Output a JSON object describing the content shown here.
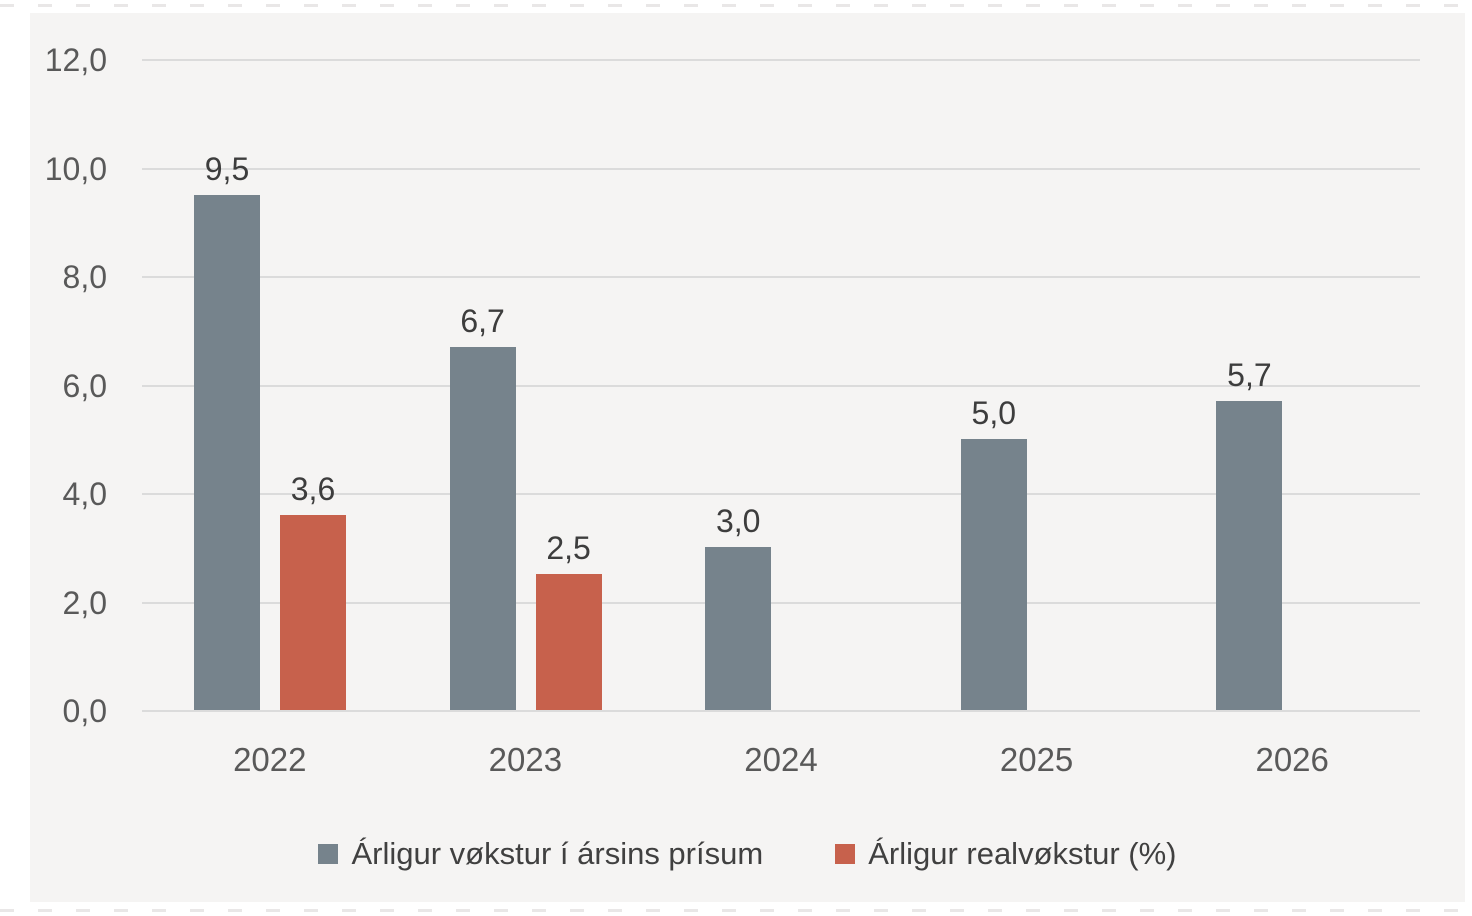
{
  "chart_data": {
    "type": "bar",
    "title": "",
    "xlabel": "",
    "ylabel": "",
    "categories": [
      "2022",
      "2023",
      "2024",
      "2025",
      "2026"
    ],
    "series": [
      {
        "name": "Árligur vøkstur í ársins prísum",
        "color": "#76838c",
        "values": [
          9.5,
          6.7,
          3.0,
          5.0,
          5.7
        ],
        "value_labels": [
          "9,5",
          "6,7",
          "3,0",
          "5,0",
          "5,7"
        ]
      },
      {
        "name": "Árligur realvøkstur (%)",
        "color": "#c7614c",
        "values": [
          3.6,
          2.5,
          null,
          null,
          null
        ],
        "value_labels": [
          "3,6",
          "2,5",
          "",
          "",
          ""
        ]
      }
    ],
    "ylim": [
      0,
      12
    ],
    "ytick_step": 2,
    "ytick_labels": [
      "0,0",
      "2,0",
      "4,0",
      "6,0",
      "8,0",
      "10,0",
      "12,0"
    ],
    "grid": "horizontal",
    "legend_position": "bottom",
    "decimal_separator": ","
  },
  "colors": {
    "page_background": "#ffffff",
    "panel_background": "#f5f4f3",
    "gridline": "#dbdbdb",
    "axis_text": "#595959",
    "data_label_text": "#3d3d3d",
    "legend_text": "#404040",
    "series_gray": "#76838c",
    "series_orange": "#c7614c"
  }
}
